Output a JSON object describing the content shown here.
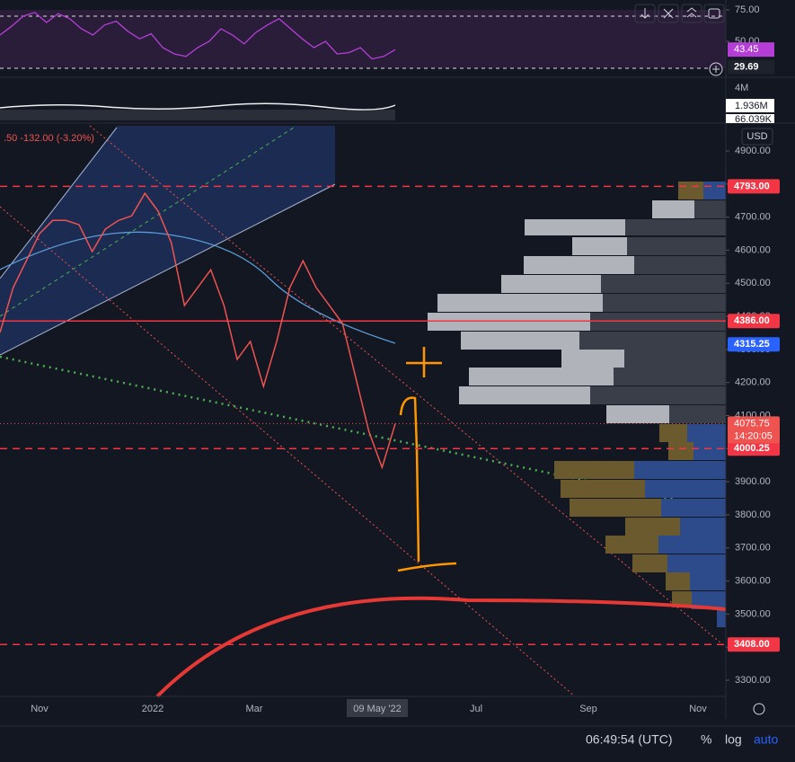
{
  "chart_data": {
    "type": "line",
    "header": ".50  -132.00 (-3.20%)",
    "currency": "USD",
    "color": "#ef5350",
    "values": [
      4351,
      4487,
      4568,
      4650,
      4690,
      4690,
      4677,
      4596,
      4664,
      4690,
      4704,
      4772,
      4718,
      4623,
      4433,
      4487,
      4541,
      4433,
      4270,
      4324,
      4188,
      4324,
      4487,
      4568,
      4487,
      4433,
      4378,
      4215,
      4052,
      3943,
      4075.75
    ],
    "ylim": [
      3300,
      4900
    ],
    "yticks": [
      {
        "value": 3300,
        "label": "3300.00"
      },
      {
        "value": 3400,
        "label": "3400.00"
      },
      {
        "value": 3500,
        "label": "3500.00"
      },
      {
        "value": 3600,
        "label": "3600.00"
      },
      {
        "value": 3700,
        "label": "3700.00"
      },
      {
        "value": 3800,
        "label": "3800.00"
      },
      {
        "value": 3900,
        "label": "3900.00"
      },
      {
        "value": 4000,
        "label": "4000.00"
      },
      {
        "value": 4100,
        "label": "4100.00"
      },
      {
        "value": 4200,
        "label": "4200.00"
      },
      {
        "value": 4300,
        "label": "4300.00"
      },
      {
        "value": 4400,
        "label": "4400.00"
      },
      {
        "value": 4500,
        "label": "4500.00"
      },
      {
        "value": 4600,
        "label": "4600.00"
      },
      {
        "value": 4700,
        "label": "4700.00"
      },
      {
        "value": 4800,
        "label": "4800.00"
      },
      {
        "value": 4900,
        "label": "4900.00"
      }
    ],
    "xticks": [
      "Nov",
      "2022",
      "Mar",
      "09 May '22",
      "Jul",
      "Sep",
      "Nov"
    ],
    "levels": [
      {
        "value": 4793,
        "label": "4793.00",
        "color": "#f23645",
        "style": "dashed"
      },
      {
        "value": 4386,
        "label": "4386.00",
        "color": "#f23645",
        "style": "solid"
      },
      {
        "value": 4315.25,
        "label": "4315.25",
        "color": "#2962ff",
        "style": "none"
      },
      {
        "value": 4000.25,
        "label": "4000.25",
        "color": "#f23645",
        "style": "dashed"
      },
      {
        "value": 3408,
        "label": "3408.00",
        "color": "#f23645",
        "style": "dashed"
      }
    ],
    "last_price": {
      "value": 4075.75,
      "countdown": "14:20:05"
    },
    "rsi": {
      "color": "#b53fd6",
      "ylim": [
        22,
        82
      ],
      "yticks": [
        {
          "value": 75,
          "label": "75.00"
        },
        {
          "value": 50,
          "label": "50.00"
        }
      ],
      "values": [
        55,
        62,
        70,
        73,
        65,
        72,
        68,
        60,
        55,
        63,
        66,
        58,
        52,
        56,
        45,
        40,
        38,
        45,
        50,
        60,
        55,
        48,
        57,
        63,
        68,
        60,
        52,
        45,
        50,
        40,
        41,
        45,
        36,
        38,
        43.45
      ],
      "value_labels": {
        "last": "43.45",
        "low": "29.69"
      },
      "last": 43.45,
      "low": 29.69
    },
    "volume": {
      "labels": [
        "4M",
        "1.936M",
        "66.039K"
      ]
    },
    "footer": {
      "time": "06:49:54 (UTC)",
      "percent": "%",
      "log": "log",
      "auto": "auto"
    }
  }
}
